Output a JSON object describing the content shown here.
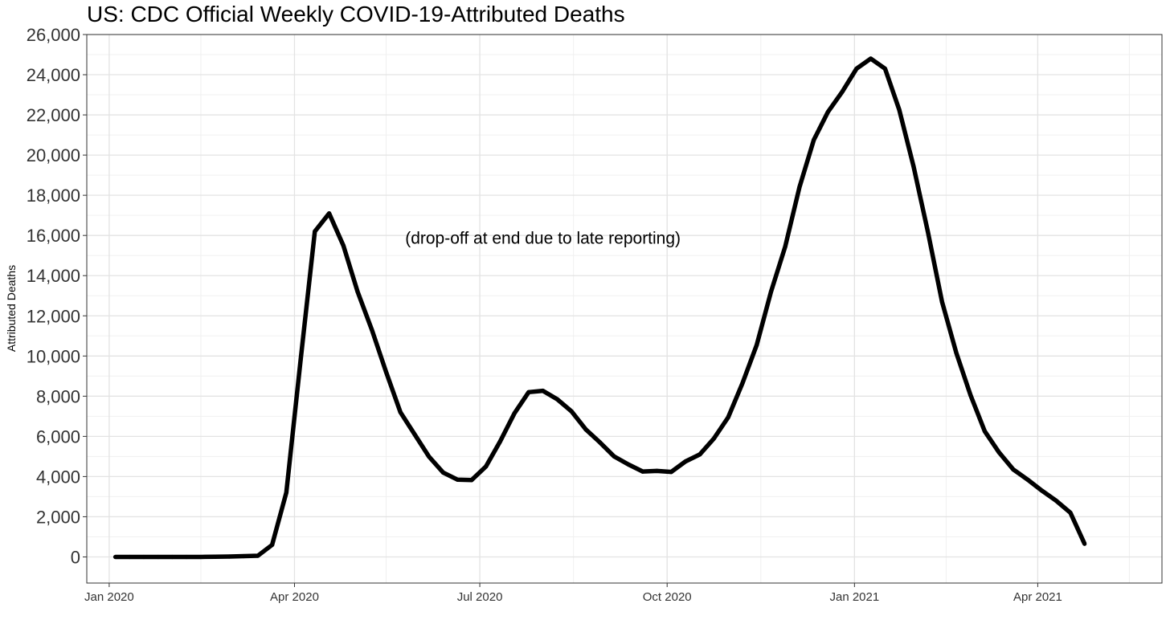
{
  "chart_data": {
    "type": "line",
    "title": "US: CDC Official Weekly COVID-19-Attributed Deaths",
    "xlabel": "",
    "ylabel": "Attributed Deaths",
    "ylim": [
      -1300,
      26000
    ],
    "xlim": [
      "2019-12-21",
      "2021-06-01"
    ],
    "y_ticks": [
      0,
      2000,
      4000,
      6000,
      8000,
      10000,
      12000,
      14000,
      16000,
      18000,
      20000,
      22000,
      24000,
      26000
    ],
    "y_tick_labels": [
      "0",
      "2,000",
      "4,000",
      "6,000",
      "8,000",
      "10,000",
      "12,000",
      "14,000",
      "16,000",
      "18,000",
      "20,000",
      "22,000",
      "24,000",
      "26,000"
    ],
    "x_ticks": [
      "2020-01-01",
      "2020-04-01",
      "2020-07-01",
      "2020-10-01",
      "2021-01-01",
      "2021-04-01"
    ],
    "x_tick_labels": [
      "Jan 2020",
      "Apr 2020",
      "Jul 2020",
      "Oct 2020",
      "Jan 2021",
      "Apr 2021"
    ],
    "x_minor_ticks": [
      "2020-02-15",
      "2020-05-16",
      "2020-08-16",
      "2020-11-16",
      "2021-02-15",
      "2021-05-16"
    ],
    "grid": true,
    "annotation": {
      "text": "(drop-off at end due to late reporting)",
      "x": "2020-08-01",
      "y": 15900
    },
    "series": [
      {
        "color": "#000000",
        "points": [
          [
            "2020-01-04",
            0
          ],
          [
            "2020-01-11",
            0
          ],
          [
            "2020-01-18",
            0
          ],
          [
            "2020-01-25",
            0
          ],
          [
            "2020-02-01",
            0
          ],
          [
            "2020-02-08",
            0
          ],
          [
            "2020-02-15",
            0
          ],
          [
            "2020-02-22",
            10
          ],
          [
            "2020-02-29",
            20
          ],
          [
            "2020-03-07",
            40
          ],
          [
            "2020-03-14",
            60
          ],
          [
            "2020-03-21",
            600
          ],
          [
            "2020-03-28",
            3200
          ],
          [
            "2020-04-04",
            9800
          ],
          [
            "2020-04-11",
            16200
          ],
          [
            "2020-04-18",
            17100
          ],
          [
            "2020-04-25",
            15500
          ],
          [
            "2020-05-02",
            13200
          ],
          [
            "2020-05-09",
            11300
          ],
          [
            "2020-05-16",
            9200
          ],
          [
            "2020-05-23",
            7200
          ],
          [
            "2020-05-30",
            6100
          ],
          [
            "2020-06-06",
            5000
          ],
          [
            "2020-06-13",
            4200
          ],
          [
            "2020-06-20",
            3850
          ],
          [
            "2020-06-27",
            3830
          ],
          [
            "2020-07-04",
            4500
          ],
          [
            "2020-07-11",
            5750
          ],
          [
            "2020-07-18",
            7150
          ],
          [
            "2020-07-25",
            8200
          ],
          [
            "2020-08-01",
            8270
          ],
          [
            "2020-08-08",
            7850
          ],
          [
            "2020-08-15",
            7250
          ],
          [
            "2020-08-22",
            6350
          ],
          [
            "2020-08-29",
            5700
          ],
          [
            "2020-09-05",
            5000
          ],
          [
            "2020-09-12",
            4600
          ],
          [
            "2020-09-19",
            4250
          ],
          [
            "2020-09-26",
            4280
          ],
          [
            "2020-10-03",
            4230
          ],
          [
            "2020-10-10",
            4750
          ],
          [
            "2020-10-17",
            5100
          ],
          [
            "2020-10-24",
            5900
          ],
          [
            "2020-10-31",
            6950
          ],
          [
            "2020-11-07",
            8650
          ],
          [
            "2020-11-14",
            10550
          ],
          [
            "2020-11-21",
            13200
          ],
          [
            "2020-11-28",
            15450
          ],
          [
            "2020-12-05",
            18400
          ],
          [
            "2020-12-12",
            20750
          ],
          [
            "2020-12-19",
            22150
          ],
          [
            "2020-12-26",
            23150
          ],
          [
            "2021-01-02",
            24300
          ],
          [
            "2021-01-09",
            24800
          ],
          [
            "2021-01-16",
            24300
          ],
          [
            "2021-01-23",
            22250
          ],
          [
            "2021-01-30",
            19450
          ],
          [
            "2021-02-06",
            16200
          ],
          [
            "2021-02-13",
            12700
          ],
          [
            "2021-02-20",
            10150
          ],
          [
            "2021-02-27",
            8050
          ],
          [
            "2021-03-06",
            6250
          ],
          [
            "2021-03-13",
            5200
          ],
          [
            "2021-03-20",
            4350
          ],
          [
            "2021-03-27",
            3850
          ],
          [
            "2021-04-03",
            3300
          ],
          [
            "2021-04-10",
            2800
          ],
          [
            "2021-04-17",
            2200
          ],
          [
            "2021-04-24",
            650
          ]
        ]
      }
    ]
  }
}
